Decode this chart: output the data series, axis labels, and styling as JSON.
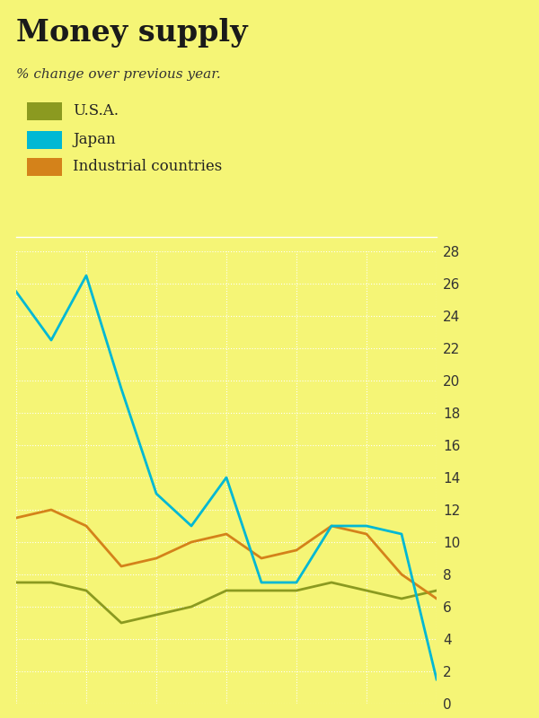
{
  "title": "Money supply",
  "subtitle": "% change over previous year.",
  "background_color": "#f5f576",
  "grid_color": "#ffffff",
  "y_min": 0,
  "y_max": 28,
  "y_ticks": [
    0,
    2,
    4,
    6,
    8,
    10,
    12,
    14,
    16,
    18,
    20,
    22,
    24,
    26,
    28
  ],
  "x_points": [
    0,
    1,
    2,
    3,
    4,
    5,
    6,
    7,
    8,
    9,
    10,
    11,
    12
  ],
  "usa_color": "#8b9a20",
  "japan_color": "#00b8d4",
  "industrial_color": "#d4821a",
  "usa_values": [
    7.5,
    7.5,
    7.0,
    5.0,
    5.5,
    6.0,
    7.0,
    7.0,
    7.0,
    7.5,
    7.0,
    6.5,
    7.0
  ],
  "japan_values": [
    25.5,
    22.5,
    26.5,
    19.5,
    13.0,
    11.0,
    14.0,
    7.5,
    7.5,
    11.0,
    11.0,
    10.5,
    1.5
  ],
  "industrial_values": [
    11.5,
    12.0,
    11.0,
    8.5,
    9.0,
    10.0,
    10.5,
    9.0,
    9.5,
    11.0,
    10.5,
    8.0,
    6.5
  ],
  "legend_labels": [
    "U.S.A.",
    "Japan",
    "Industrial countries"
  ],
  "legend_colors": [
    "#8b9a20",
    "#00b8d4",
    "#d4821a"
  ],
  "title_fontsize": 24,
  "subtitle_fontsize": 11,
  "legend_fontsize": 12,
  "tick_fontsize": 11,
  "line_width": 2.0
}
